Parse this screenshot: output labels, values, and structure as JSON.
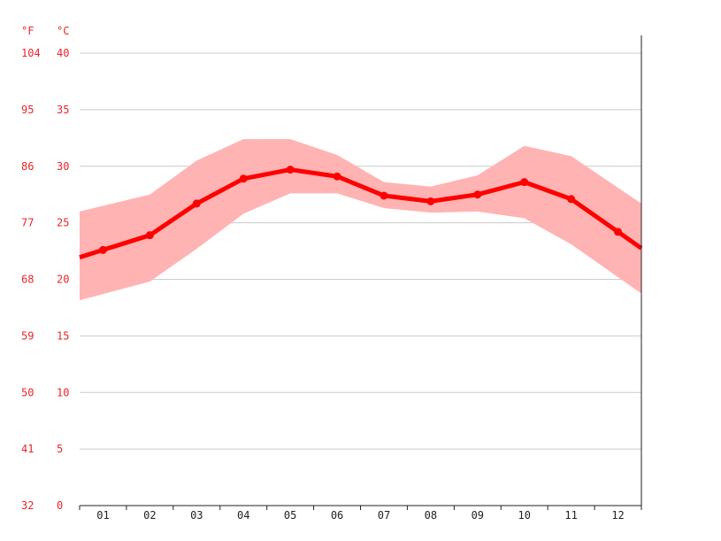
{
  "chart_data": {
    "type": "line",
    "unit_labels": {
      "fahrenheit": "°F",
      "celsius": "°C"
    },
    "categories": [
      "01",
      "02",
      "03",
      "04",
      "05",
      "06",
      "07",
      "08",
      "09",
      "10",
      "11",
      "12"
    ],
    "y_ticks_celsius": [
      "0",
      "5",
      "10",
      "15",
      "20",
      "25",
      "30",
      "35",
      "40"
    ],
    "y_ticks_fahrenheit": [
      "32",
      "41",
      "50",
      "59",
      "68",
      "77",
      "86",
      "95",
      "104"
    ],
    "ylim": [
      0,
      40
    ],
    "grid": true,
    "series": [
      {
        "values": [
          22.6,
          23.9,
          26.7,
          28.9,
          29.7,
          29.1,
          27.4,
          26.9,
          27.5,
          28.6,
          27.1,
          24.2
        ]
      }
    ],
    "range": {
      "upper": [
        26.5,
        27.5,
        30.5,
        32.4,
        32.4,
        31.0,
        28.6,
        28.2,
        29.2,
        31.8,
        30.9,
        28.1
      ],
      "lower": [
        18.7,
        19.8,
        22.7,
        25.8,
        27.6,
        27.6,
        26.3,
        25.9,
        26.0,
        25.4,
        23.1,
        20.2
      ]
    },
    "colors": {
      "line": "#ff0000",
      "band": "#ffb3b3",
      "label": "#e8262b",
      "grid": "#cccccc"
    }
  }
}
